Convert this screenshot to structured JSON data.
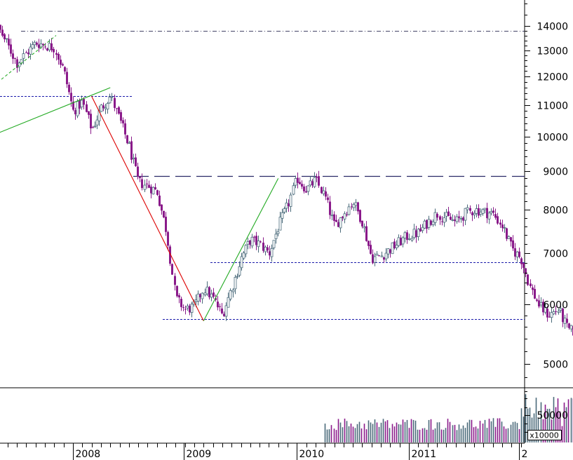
{
  "chart_data": {
    "type": "candlestick",
    "price_axis": {
      "scale": "log",
      "ticks": [
        5000,
        6000,
        7000,
        8000,
        9000,
        10000,
        11000,
        12000,
        13000,
        14000
      ],
      "tick_labels": [
        "5000",
        "6000",
        "7000",
        "8000",
        "9000",
        "10000",
        "11000",
        "12000",
        "13000",
        "14000"
      ]
    },
    "time_axis": {
      "labels": [
        "2008",
        "2009",
        "2010",
        "2011",
        "2"
      ]
    },
    "volume_axis": {
      "tick_labels": [
        "50000"
      ],
      "unit": "x10000"
    },
    "colors": {
      "up": "#4a6a7a",
      "down": "#8a1a8a",
      "red_trend": "#dd0000",
      "green_trend": "#22aa22",
      "level": "#1a1aaa",
      "top_dashdot": "#444466"
    },
    "annotations": {
      "horizontal_levels": [
        13800,
        11300,
        8860,
        6820,
        5730
      ],
      "trendlines": [
        {
          "color": "red",
          "from": [
            "2008-03",
            11300
          ],
          "to": [
            "2009-03",
            5700
          ]
        },
        {
          "color": "green",
          "from": [
            "2009-03",
            5700
          ],
          "to": [
            "2009-11",
            8800
          ]
        },
        {
          "color": "green",
          "from": [
            "2007-01",
            9650
          ],
          "to": [
            "2008-05",
            11600
          ]
        }
      ]
    },
    "ohlc": []
  }
}
